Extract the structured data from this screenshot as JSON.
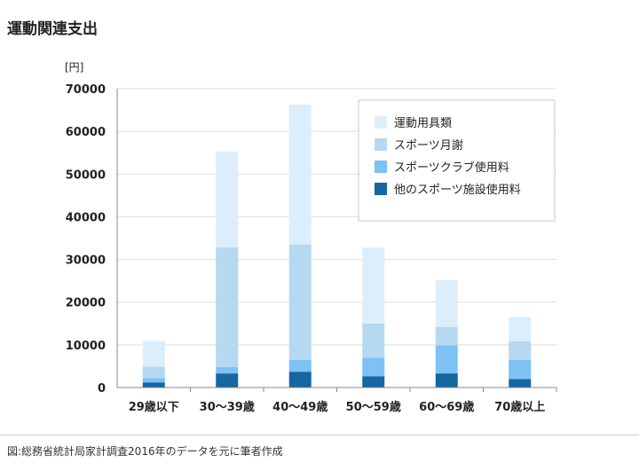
{
  "page_title": "運動関連支出",
  "source_note": "図:総務省統計局家計調査2016年のデータを元に筆者作成",
  "chart_data": {
    "type": "bar",
    "stacked": true,
    "title": "運動関連支出",
    "ylabel": "[円]",
    "xlabel": "",
    "ylim": [
      0,
      70000
    ],
    "yticks": [
      0,
      10000,
      20000,
      30000,
      40000,
      50000,
      60000,
      70000
    ],
    "grid": true,
    "legend_position": "top-right",
    "categories": [
      "29歳以下",
      "30〜39歳",
      "40〜49歳",
      "50〜59歳",
      "60〜69歳",
      "70歳以上"
    ],
    "series": [
      {
        "name": "他のスポーツ施設使用料",
        "color": "#1467a0",
        "values": [
          1200,
          3300,
          3700,
          2600,
          3300,
          2000
        ]
      },
      {
        "name": "スポーツクラブ使用料",
        "color": "#7ec1f3",
        "values": [
          1000,
          1500,
          2800,
          4400,
          6600,
          4500
        ]
      },
      {
        "name": "スポーツ月謝",
        "color": "#b6d8f1",
        "values": [
          2700,
          28000,
          27000,
          8000,
          4300,
          4300
        ]
      },
      {
        "name": "運動用具類",
        "color": "#dceefb",
        "values": [
          6000,
          22500,
          32800,
          17800,
          11000,
          5700
        ]
      }
    ],
    "legend_order": [
      "運動用具類",
      "スポーツ月謝",
      "スポーツクラブ使用料",
      "他のスポーツ施設使用料"
    ]
  }
}
